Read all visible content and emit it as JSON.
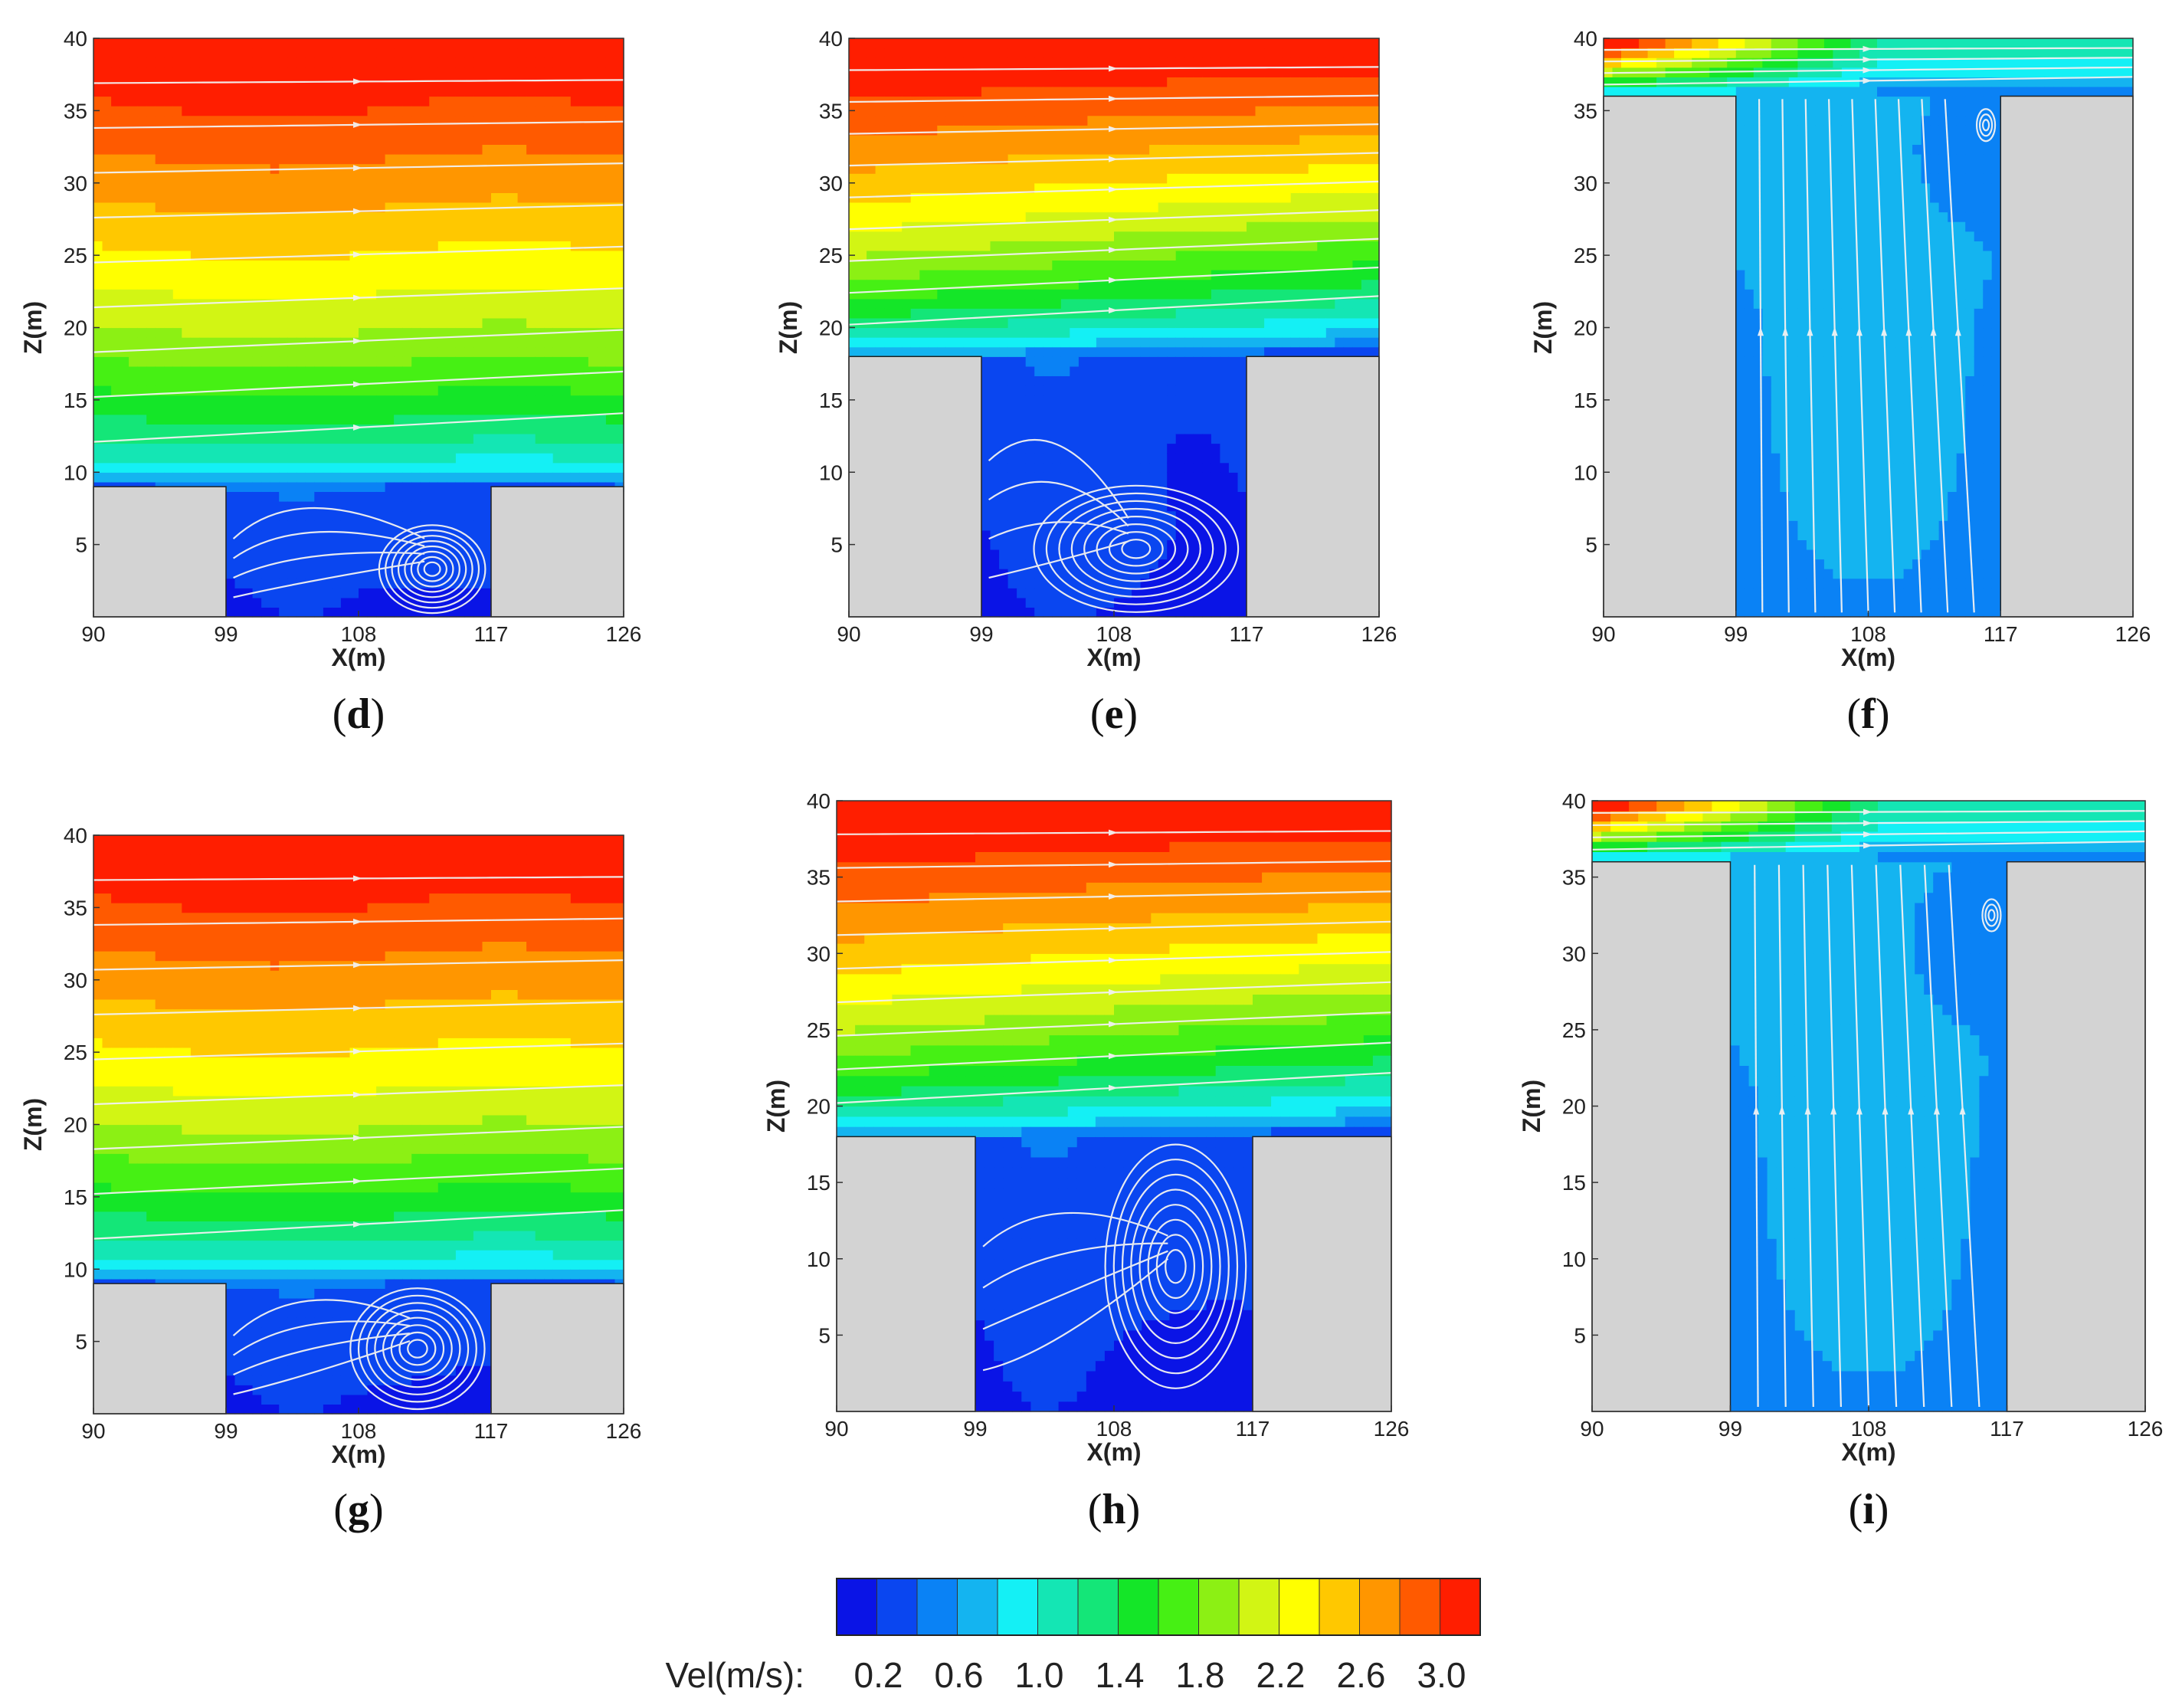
{
  "chart_data": {
    "type": "heatmap",
    "description_units": {
      "x": "X(m)",
      "z": "Z(m)",
      "color": "Vel(m/s)"
    },
    "panels": [
      {
        "id": "d",
        "label_open": "(",
        "label_letter": "d",
        "label_close": ")",
        "xlabel": "X(m)",
        "ylabel": "Z(m)",
        "xlim": [
          90,
          126
        ],
        "ylim": [
          0,
          40
        ],
        "xticks": [
          "90",
          "99",
          "108",
          "117",
          "126"
        ],
        "yticks": [
          "5",
          "10",
          "15",
          "20",
          "25",
          "30",
          "35",
          "40"
        ],
        "buildings": {
          "left": [
            90,
            99
          ],
          "right": [
            117,
            126
          ],
          "height": 9
        },
        "canyon_vortex": [
          113,
          3.3
        ]
      },
      {
        "id": "e",
        "label_open": "(",
        "label_letter": "e",
        "label_close": ")",
        "xlabel": "X(m)",
        "ylabel": "Z(m)",
        "xlim": [
          90,
          126
        ],
        "ylim": [
          0,
          40
        ],
        "xticks": [
          "90",
          "99",
          "108",
          "117",
          "126"
        ],
        "yticks": [
          "5",
          "10",
          "15",
          "20",
          "25",
          "30",
          "35",
          "40"
        ],
        "buildings": {
          "left": [
            90,
            99
          ],
          "right": [
            117,
            126
          ],
          "height": 18
        },
        "canyon_vortex": [
          109.5,
          4.7
        ]
      },
      {
        "id": "f",
        "label_open": "(",
        "label_letter": "f",
        "label_close": ")",
        "xlabel": "X(m)",
        "ylabel": "Z(m)",
        "xlim": [
          90,
          126
        ],
        "ylim": [
          0,
          40
        ],
        "xticks": [
          "90",
          "99",
          "108",
          "117",
          "126"
        ],
        "yticks": [
          "5",
          "10",
          "15",
          "20",
          "25",
          "30",
          "35",
          "40"
        ],
        "buildings": {
          "left": [
            90,
            99
          ],
          "right": [
            117,
            126
          ],
          "height": 36
        },
        "canyon_vortex": [
          116,
          34
        ]
      },
      {
        "id": "g",
        "label_open": "(",
        "label_letter": "g",
        "label_close": ")",
        "xlabel": "X(m)",
        "ylabel": "Z(m)",
        "xlim": [
          90,
          126
        ],
        "ylim": [
          0,
          40
        ],
        "xticks": [
          "90",
          "99",
          "108",
          "117",
          "126"
        ],
        "yticks": [
          "5",
          "10",
          "15",
          "20",
          "25",
          "30",
          "35",
          "40"
        ],
        "buildings": {
          "left": [
            90,
            99
          ],
          "right": [
            117,
            126
          ],
          "height": 9
        },
        "canyon_vortex": [
          112,
          4.5
        ]
      },
      {
        "id": "h",
        "label_open": "(",
        "label_letter": "h",
        "label_close": ")",
        "xlabel": "X(m)",
        "ylabel": "Z(m)",
        "xlim": [
          90,
          126
        ],
        "ylim": [
          0,
          40
        ],
        "xticks": [
          "90",
          "99",
          "108",
          "117",
          "126"
        ],
        "yticks": [
          "5",
          "10",
          "15",
          "20",
          "25",
          "30",
          "35",
          "40"
        ],
        "buildings": {
          "left": [
            90,
            99
          ],
          "right": [
            117,
            126
          ],
          "height": 18
        },
        "canyon_vortex": [
          112,
          9.5
        ]
      },
      {
        "id": "i",
        "label_open": "(",
        "label_letter": "i",
        "label_close": ")",
        "xlabel": "X(m)",
        "ylabel": "Z(m)",
        "xlim": [
          90,
          126
        ],
        "ylim": [
          0,
          40
        ],
        "xticks": [
          "90",
          "99",
          "108",
          "117",
          "126"
        ],
        "yticks": [
          "5",
          "10",
          "15",
          "20",
          "25",
          "30",
          "35",
          "40"
        ],
        "buildings": {
          "left": [
            90,
            99
          ],
          "right": [
            117,
            126
          ],
          "height": 36
        },
        "canyon_vortex": [
          116,
          32.5
        ]
      }
    ],
    "colorbar": {
      "label": "Vel(m/s):",
      "tick_labels": [
        "0.2",
        "0.6",
        "1.0",
        "1.4",
        "1.8",
        "2.2",
        "2.6",
        "3.0"
      ],
      "colors": [
        "#0a14e6",
        "#0a46f0",
        "#0a82f5",
        "#14b4f0",
        "#14f0f5",
        "#14e6b4",
        "#14e678",
        "#14e628",
        "#46f014",
        "#8cf014",
        "#d2f514",
        "#ffff00",
        "#ffc800",
        "#ff9600",
        "#ff5a00",
        "#ff1e00"
      ]
    },
    "speed_levels": [
      0.1,
      0.3,
      0.5,
      0.7,
      0.9,
      1.1,
      1.3,
      1.5,
      1.7,
      1.9,
      2.1,
      2.3,
      2.5,
      2.7,
      2.9,
      3.1
    ]
  }
}
